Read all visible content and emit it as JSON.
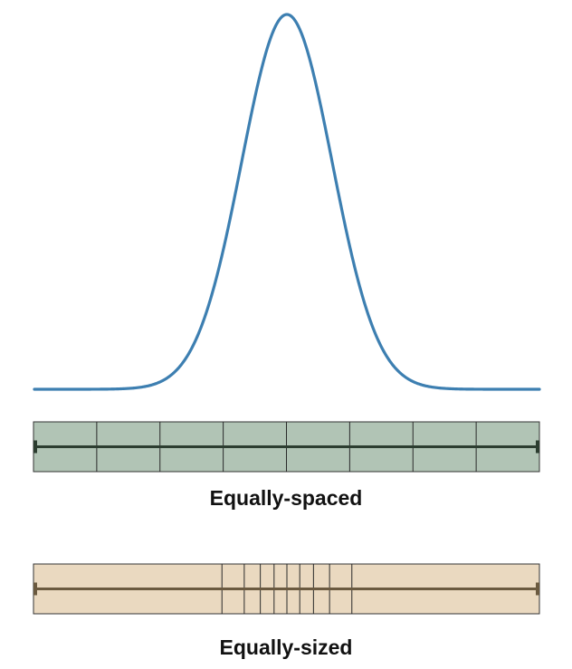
{
  "figure": {
    "curve": {
      "type": "gaussian",
      "color": "#3d7fb1"
    },
    "equally_spaced": {
      "caption": "Equally-spaced",
      "fill": "#b1c4b5",
      "line_color": "#2c3d30",
      "bins": 8
    },
    "equally_sized": {
      "caption": "Equally-sized",
      "fill": "#ead9c0",
      "line_color": "#6b5a40",
      "bins": 10
    }
  }
}
